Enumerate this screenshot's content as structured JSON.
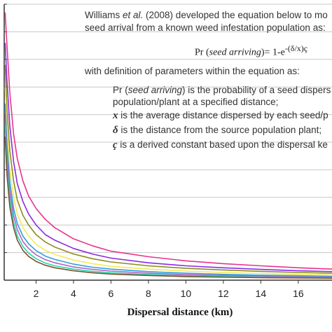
{
  "chart_data": {
    "type": "line",
    "title": "",
    "xlabel": "Dispersal distance (km)",
    "ylabel": "",
    "x_ticks": [
      2,
      4,
      6,
      8,
      10,
      12,
      14,
      16
    ],
    "xlim": [
      0.3,
      17.8
    ],
    "ylim": [
      0,
      1
    ],
    "grid": "horizontal",
    "series": [
      {
        "color": "#e8338a",
        "x": [
          0.35,
          0.45,
          0.6,
          0.8,
          1,
          1.3,
          1.6,
          2,
          2.5,
          3,
          4,
          5,
          6,
          8,
          10,
          12,
          14,
          16,
          17.8
        ],
        "y": [
          0.97,
          0.85,
          0.68,
          0.53,
          0.44,
          0.36,
          0.305,
          0.26,
          0.22,
          0.19,
          0.15,
          0.125,
          0.105,
          0.085,
          0.07,
          0.06,
          0.052,
          0.045,
          0.04
        ]
      },
      {
        "color": "#8a2be2",
        "x": [
          0.35,
          0.45,
          0.6,
          0.8,
          1,
          1.3,
          1.6,
          2,
          2.5,
          3,
          4,
          5,
          6,
          8,
          10,
          12,
          14,
          16,
          17.8
        ],
        "y": [
          0.86,
          0.72,
          0.56,
          0.43,
          0.35,
          0.285,
          0.24,
          0.2,
          0.165,
          0.145,
          0.115,
          0.095,
          0.08,
          0.063,
          0.052,
          0.045,
          0.039,
          0.034,
          0.031
        ]
      },
      {
        "color": "#8c8c1e",
        "x": [
          0.35,
          0.45,
          0.6,
          0.8,
          1,
          1.3,
          1.6,
          2,
          2.5,
          3,
          4,
          5,
          6,
          8,
          10,
          12,
          14,
          16,
          17.8
        ],
        "y": [
          0.78,
          0.62,
          0.47,
          0.36,
          0.29,
          0.235,
          0.2,
          0.165,
          0.138,
          0.12,
          0.095,
          0.078,
          0.066,
          0.052,
          0.043,
          0.037,
          0.032,
          0.028,
          0.025
        ]
      },
      {
        "color": "#f2ea5a",
        "x": [
          0.35,
          0.45,
          0.6,
          0.8,
          1,
          1.3,
          1.6,
          2,
          2.5,
          3,
          4,
          5,
          6,
          8,
          10,
          12,
          14,
          16,
          17.8
        ],
        "y": [
          0.7,
          0.55,
          0.4,
          0.3,
          0.24,
          0.19,
          0.16,
          0.13,
          0.108,
          0.093,
          0.073,
          0.06,
          0.05,
          0.04,
          0.033,
          0.028,
          0.024,
          0.021,
          0.019
        ]
      },
      {
        "color": "#2f9fe0",
        "x": [
          0.35,
          0.45,
          0.6,
          0.8,
          1,
          1.3,
          1.6,
          2,
          2.5,
          3,
          4,
          5,
          6,
          8,
          10,
          12,
          14,
          16,
          17.8
        ],
        "y": [
          0.64,
          0.49,
          0.355,
          0.26,
          0.205,
          0.16,
          0.132,
          0.107,
          0.087,
          0.075,
          0.058,
          0.047,
          0.04,
          0.031,
          0.025,
          0.021,
          0.018,
          0.016,
          0.014
        ]
      },
      {
        "color": "#b060c8",
        "x": [
          0.35,
          0.45,
          0.6,
          0.8,
          1,
          1.3,
          1.6,
          2,
          2.5,
          3,
          4,
          5,
          6,
          8,
          10,
          12,
          14,
          16,
          17.8
        ],
        "y": [
          0.6,
          0.45,
          0.32,
          0.235,
          0.183,
          0.14,
          0.115,
          0.092,
          0.074,
          0.063,
          0.048,
          0.039,
          0.033,
          0.025,
          0.02,
          0.017,
          0.015,
          0.013,
          0.011
        ]
      },
      {
        "color": "#28d4a8",
        "x": [
          0.35,
          0.45,
          0.6,
          0.8,
          1,
          1.3,
          1.6,
          2,
          2.5,
          3,
          4,
          5,
          6,
          8,
          10,
          12,
          14,
          16,
          17.8
        ],
        "y": [
          0.56,
          0.41,
          0.29,
          0.21,
          0.16,
          0.122,
          0.098,
          0.078,
          0.062,
          0.052,
          0.04,
          0.032,
          0.027,
          0.02,
          0.016,
          0.013,
          0.011,
          0.01,
          0.009
        ]
      },
      {
        "color": "#7a5230",
        "x": [
          0.35,
          0.45,
          0.6,
          0.8,
          1,
          1.3,
          1.6,
          2,
          2.5,
          3,
          4,
          5,
          6,
          8,
          10,
          12,
          14,
          16,
          17.8
        ],
        "y": [
          0.52,
          0.38,
          0.265,
          0.19,
          0.145,
          0.108,
          0.086,
          0.068,
          0.054,
          0.045,
          0.034,
          0.027,
          0.022,
          0.017,
          0.013,
          0.011,
          0.009,
          0.008,
          0.007
        ]
      }
    ]
  },
  "annotation": {
    "intro_line1_pre": "Williams ",
    "intro_line1_em": "et al.",
    "intro_line1_post": " (2008) developed the equation below to mo",
    "intro_line2": "seed arrival from a known weed infestation population as:",
    "formula_pre": "Pr (",
    "formula_em": "seed arriving",
    "formula_mid": ")= 1-e",
    "formula_exp": "-(δ/x)ç",
    "definitions_intro": "with definition of parameters within the equation as:",
    "def1_pre": "Pr (",
    "def1_em": "seed arriving",
    "def1_post": ") is the probability of a seed dispers",
    "def1_line2": "population/plant at a specified distance;",
    "def2_sym": "x",
    "def2_text": " is the average distance dispersed by each seed/p",
    "def3_sym": "δ",
    "def3_text": " is the distance from the source population plant;",
    "def4_sym": "ç",
    "def4_text": " is a derived constant based upon the dispersal ke"
  }
}
